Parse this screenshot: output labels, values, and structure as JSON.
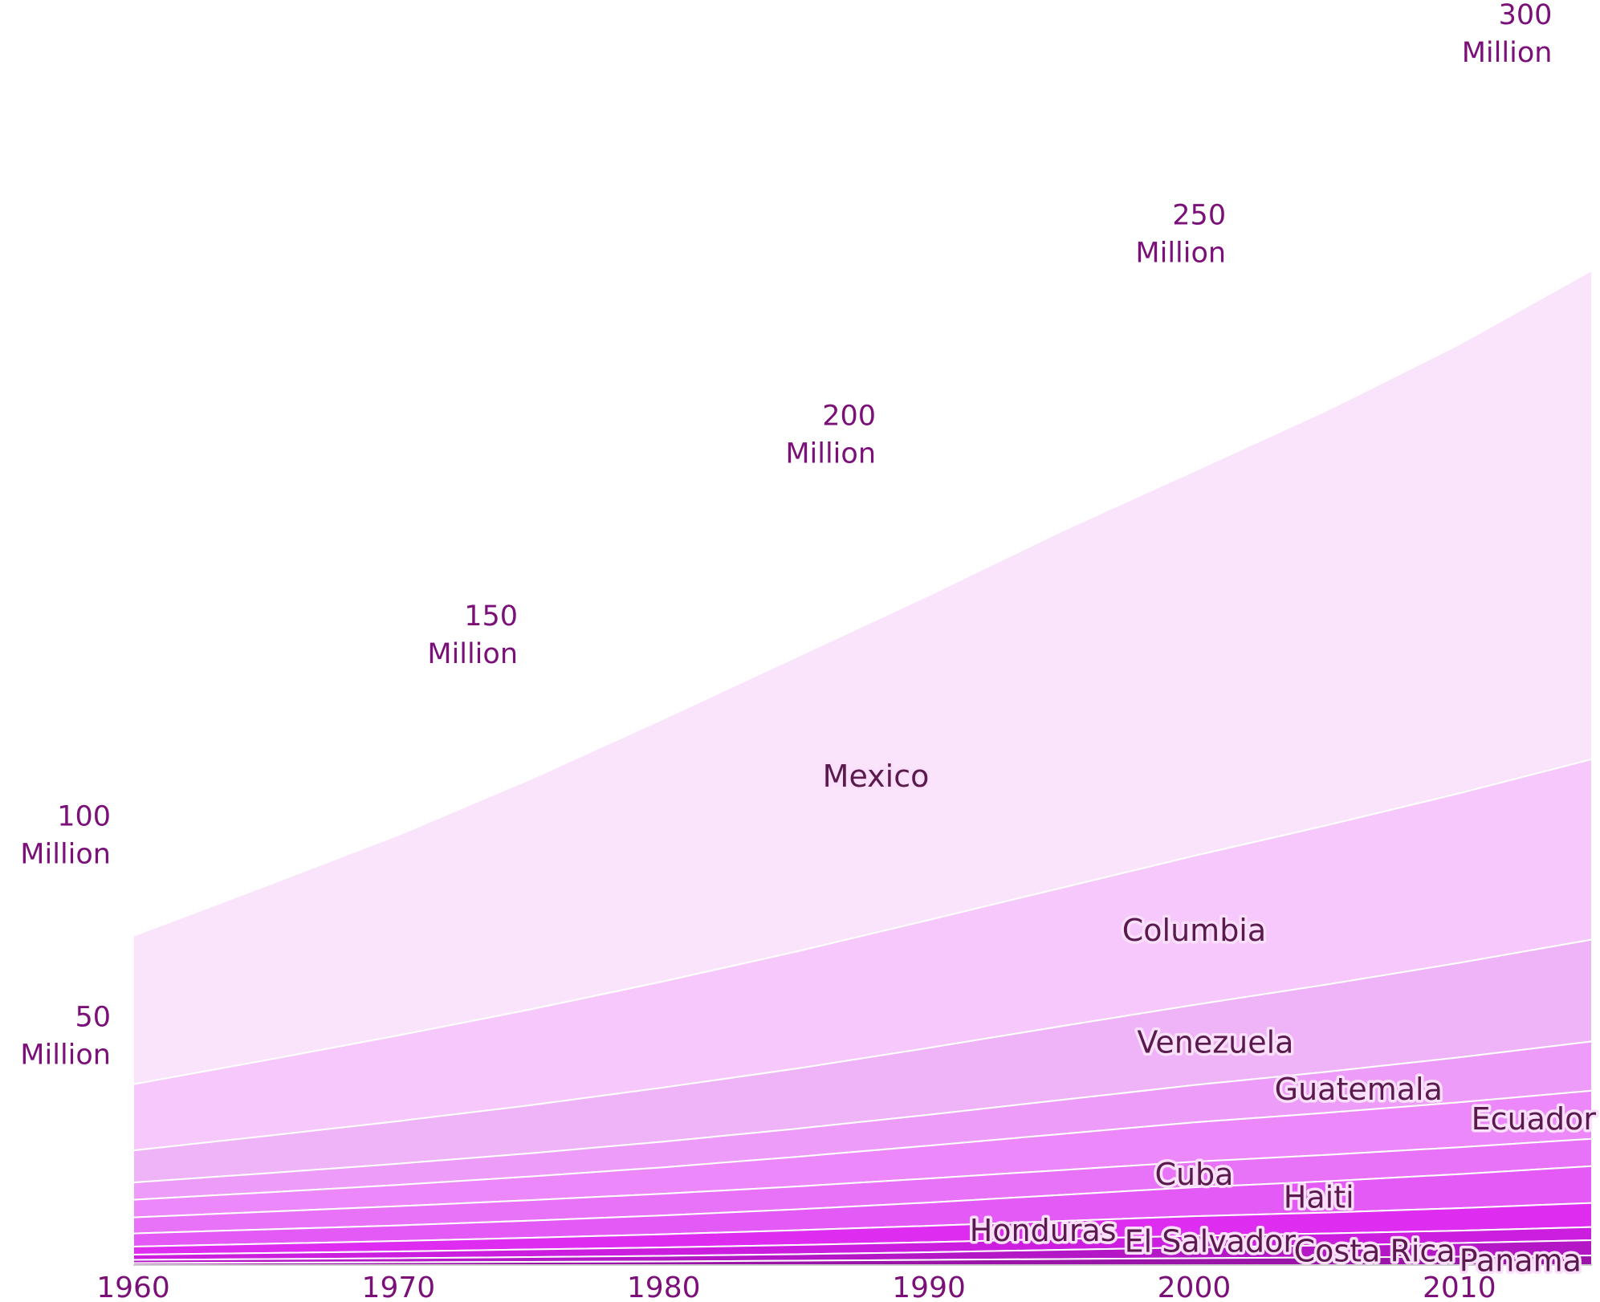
{
  "chart_data": {
    "type": "area",
    "stacked": true,
    "x": [
      1960,
      1965,
      1970,
      1975,
      1980,
      1985,
      1990,
      1995,
      2000,
      2005,
      2010,
      2015
    ],
    "xticks": [
      1960,
      1970,
      1980,
      1990,
      2000,
      2010
    ],
    "xlim": [
      1960,
      2015
    ],
    "ylim": [
      0,
      300
    ],
    "yunit": "Million",
    "yticks": [
      {
        "value": 50,
        "x": 1960,
        "line1": "50",
        "line2": "Million"
      },
      {
        "value": 100,
        "x": 1960,
        "line1": "100",
        "line2": "Million"
      },
      {
        "value": 150,
        "x": 1974.5,
        "line1": "150",
        "line2": "Million"
      },
      {
        "value": 200,
        "x": 1988,
        "line1": "200",
        "line2": "Million"
      },
      {
        "value": 250,
        "x": 2001.2,
        "line1": "250",
        "line2": "Million"
      },
      {
        "value": 300,
        "x": 2013.5,
        "line1": "300",
        "line2": "Million"
      }
    ],
    "series": [
      {
        "name": "Panama",
        "color": "#9a14a8",
        "label_x": 2012.3,
        "values": [
          0.5,
          0.6,
          0.7,
          0.8,
          0.9,
          1.1,
          1.3,
          1.5,
          1.7,
          1.9,
          2.1,
          2.4
        ]
      },
      {
        "name": "Costa Rica",
        "color": "#b418c6",
        "label_x": 2006.8,
        "values": [
          0.8,
          0.9,
          1.0,
          1.2,
          1.4,
          1.6,
          1.9,
          2.3,
          2.7,
          3.0,
          3.4,
          3.8
        ]
      },
      {
        "name": "El Salvador",
        "color": "#cc1edf",
        "label_x": 2000.6,
        "values": [
          1.3,
          1.5,
          1.7,
          1.9,
          2.1,
          2.3,
          2.5,
          2.7,
          2.9,
          3.0,
          3.1,
          3.3
        ]
      },
      {
        "name": "Honduras",
        "color": "#de2cf0",
        "label_x": 1994.3,
        "values": [
          2.0,
          2.3,
          2.6,
          2.9,
          3.3,
          3.7,
          4.1,
          4.5,
          4.9,
          5.2,
          5.6,
          6.0
        ]
      },
      {
        "name": "Haiti",
        "color": "#e45af7",
        "label_x": 2004.7,
        "values": [
          3.3,
          3.6,
          3.9,
          4.3,
          4.7,
          5.2,
          5.8,
          6.5,
          7.2,
          7.8,
          8.5,
          9.2
        ]
      },
      {
        "name": "Cuba",
        "color": "#e872f8",
        "label_x": 2000.0,
        "values": [
          4.0,
          4.4,
          4.8,
          5.1,
          5.4,
          5.7,
          6.0,
          6.2,
          6.4,
          6.6,
          6.7,
          6.8
        ]
      },
      {
        "name": "Ecuador",
        "color": "#ec88f9",
        "label_x": 2012.8,
        "values": [
          4.4,
          4.8,
          5.3,
          5.9,
          6.6,
          7.4,
          8.2,
          9.0,
          9.8,
          10.5,
          11.2,
          12.0
        ]
      },
      {
        "name": "Guatemala",
        "color": "#ee9cf9",
        "label_x": 2006.2,
        "values": [
          4.3,
          4.8,
          5.3,
          5.8,
          6.4,
          7.0,
          7.7,
          8.5,
          9.3,
          10.2,
          11.2,
          12.3
        ]
      },
      {
        "name": "Venezuela",
        "color": "#eeb4f7",
        "label_x": 2000.8,
        "values": [
          8.0,
          9.3,
          10.6,
          12.0,
          13.5,
          15.0,
          16.7,
          18.4,
          20.0,
          21.8,
          23.6,
          25.4
        ]
      },
      {
        "name": "Columbia",
        "color": "#f6c8fb",
        "label_x": 2000.0,
        "values": [
          16.5,
          18.9,
          21.4,
          23.9,
          26.5,
          29.2,
          31.9,
          34.5,
          37.2,
          39.7,
          42.3,
          45.0
        ]
      },
      {
        "name": "Mexico",
        "color": "#fae4fc",
        "label_x": 1988.0,
        "values": [
          37.0,
          43.5,
          50.0,
          57.5,
          65.5,
          73.5,
          81.0,
          89.0,
          96.0,
          103.5,
          112.0,
          122.0
        ]
      }
    ]
  }
}
